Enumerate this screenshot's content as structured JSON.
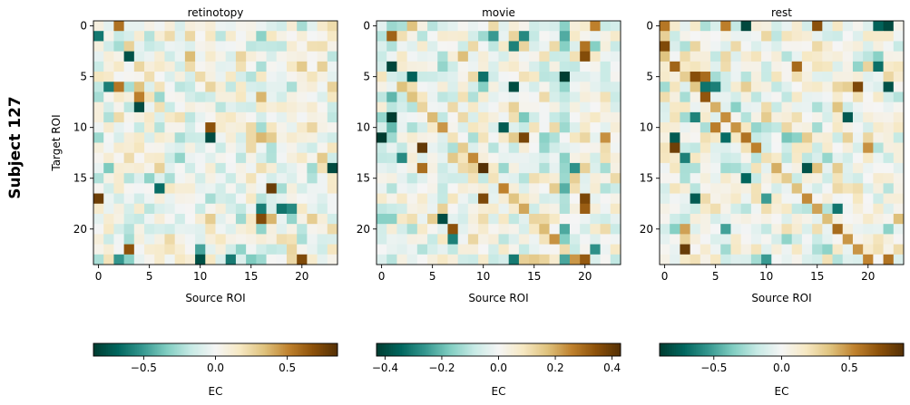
{
  "figure": {
    "row_label": "Subject 127"
  },
  "chart_data": [
    {
      "type": "heatmap",
      "title": "retinotopy",
      "xlabel": "Source ROI",
      "ylabel": "Target ROI",
      "xlim": [
        -0.5,
        23.5
      ],
      "ylim": [
        23.5,
        -0.5
      ],
      "xticks": [
        0,
        5,
        10,
        15,
        20
      ],
      "yticks": [
        0,
        5,
        10,
        15,
        20
      ],
      "colormap": "BrBG_r",
      "vmin": -0.85,
      "vmax": 0.85,
      "colorbar": {
        "label": "EC",
        "ticks": [
          -0.5,
          0.0,
          0.5
        ],
        "tick_labels": [
          "−0.5",
          "0.0",
          "0.5"
        ]
      },
      "seed": 127
    },
    {
      "type": "heatmap",
      "title": "movie",
      "xlabel": "Source ROI",
      "ylabel": "",
      "xlim": [
        -0.5,
        23.5
      ],
      "ylim": [
        23.5,
        -0.5
      ],
      "xticks": [
        0,
        5,
        10,
        15,
        20
      ],
      "yticks": [
        0,
        5,
        10,
        15,
        20
      ],
      "colormap": "BrBG_r",
      "vmin": -0.43,
      "vmax": 0.43,
      "colorbar": {
        "label": "EC",
        "ticks": [
          -0.4,
          -0.2,
          0.0,
          0.2,
          0.4
        ],
        "tick_labels": [
          "−0.4",
          "−0.2",
          "0.0",
          "0.2",
          "0.4"
        ]
      },
      "seed": 311
    },
    {
      "type": "heatmap",
      "title": "rest",
      "xlabel": "Source ROI",
      "ylabel": "",
      "xlim": [
        -0.5,
        23.5
      ],
      "ylim": [
        23.5,
        -0.5
      ],
      "xticks": [
        0,
        5,
        10,
        15,
        20
      ],
      "yticks": [
        0,
        5,
        10,
        15,
        20
      ],
      "colormap": "BrBG_r",
      "vmin": -0.9,
      "vmax": 0.9,
      "colorbar": {
        "label": "EC",
        "ticks": [
          -0.5,
          0.0,
          0.5
        ],
        "tick_labels": [
          "−0.5",
          "0.0",
          "0.5"
        ]
      },
      "seed": 733
    }
  ]
}
